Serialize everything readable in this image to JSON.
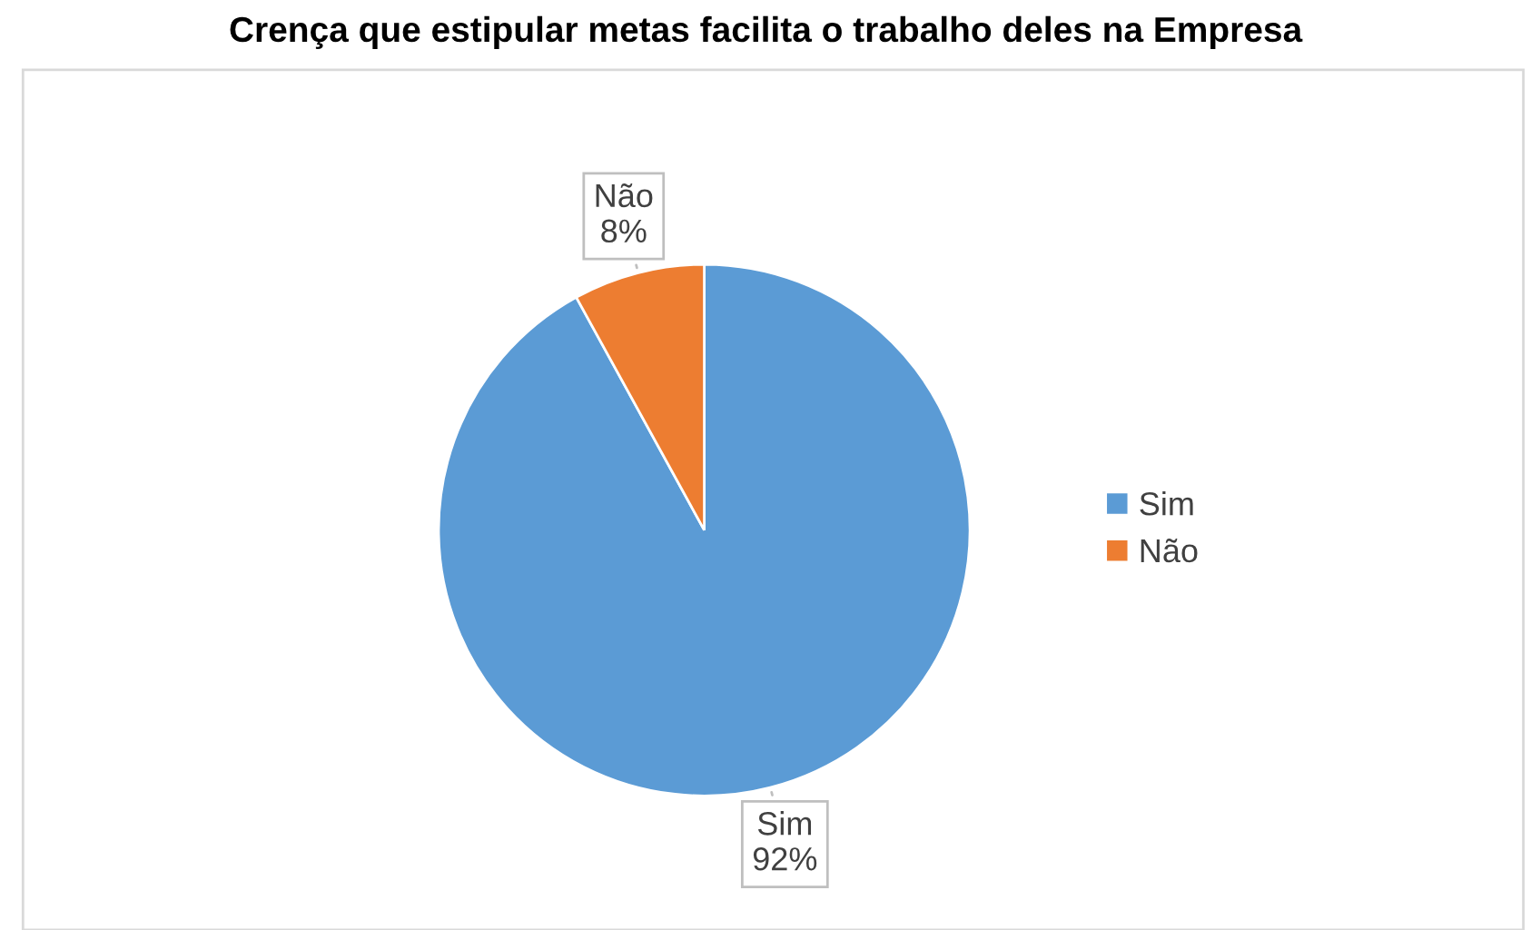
{
  "chart_data": {
    "type": "pie",
    "title": "Crença que estipular metas facilita o trabalho deles na Empresa",
    "categories": [
      "Sim",
      "Não"
    ],
    "values": [
      92,
      8
    ],
    "colors": [
      "#5b9bd5",
      "#ed7d31"
    ],
    "value_labels": [
      "92%",
      "8%"
    ],
    "legend": "right"
  }
}
